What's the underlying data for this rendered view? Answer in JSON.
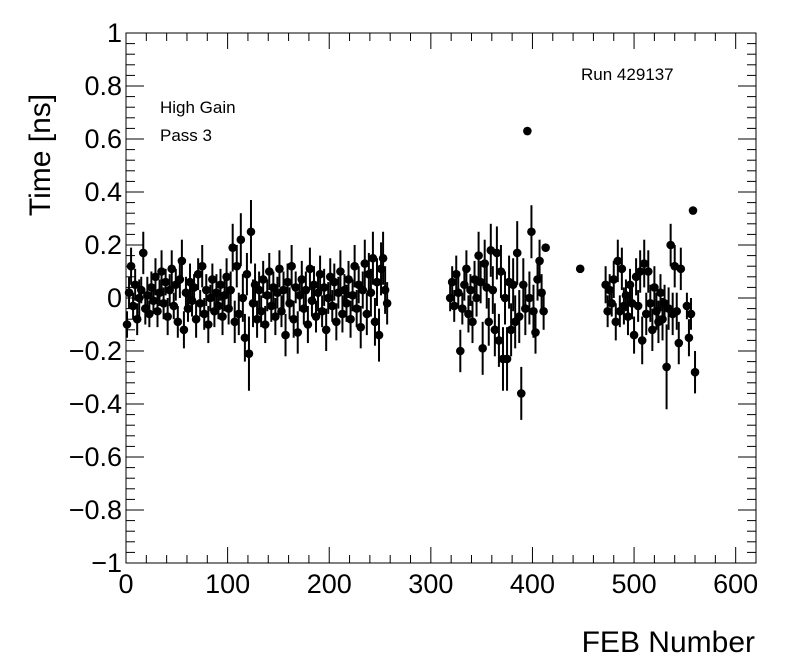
{
  "chart_data": {
    "type": "scatter",
    "title": "",
    "xlabel": "FEB Number",
    "ylabel": "Time [ns]",
    "xlim": [
      0,
      620
    ],
    "ylim": [
      -1,
      1
    ],
    "x_ticks": [
      0,
      100,
      200,
      300,
      400,
      500,
      600
    ],
    "x_tick_labels": [
      "0",
      "100",
      "200",
      "300",
      "400",
      "500",
      "600"
    ],
    "y_ticks": [
      -1,
      -0.8,
      -0.6,
      -0.4,
      -0.2,
      0,
      0.2,
      0.4,
      0.6,
      0.8,
      1
    ],
    "y_tick_labels": [
      "−1",
      "−0.8",
      "−0.6",
      "−0.4",
      "−0.2",
      "0",
      "0.2",
      "0.4",
      "0.6",
      "0.8",
      "1"
    ],
    "grid": false,
    "annotations": {
      "run": "Run 429137",
      "gain": "High Gain",
      "pass": "Pass 3"
    },
    "marker_color": "#000000",
    "points": [
      [
        1,
        -0.1,
        0.05
      ],
      [
        3,
        0.02,
        0.06
      ],
      [
        5,
        0.12,
        0.07
      ],
      [
        7,
        -0.03,
        0.05
      ],
      [
        9,
        0.05,
        0.06
      ],
      [
        11,
        -0.08,
        0.06
      ],
      [
        13,
        0.0,
        0.07
      ],
      [
        15,
        0.03,
        0.05
      ],
      [
        17,
        0.17,
        0.08
      ],
      [
        19,
        -0.04,
        0.06
      ],
      [
        21,
        0.01,
        0.07
      ],
      [
        23,
        -0.06,
        0.05
      ],
      [
        25,
        0.04,
        0.06
      ],
      [
        27,
        -0.01,
        0.05
      ],
      [
        29,
        0.08,
        0.07
      ],
      [
        31,
        -0.05,
        0.06
      ],
      [
        33,
        0.02,
        0.05
      ],
      [
        35,
        0.1,
        0.08
      ],
      [
        37,
        -0.02,
        0.06
      ],
      [
        39,
        0.06,
        0.05
      ],
      [
        41,
        -0.07,
        0.07
      ],
      [
        43,
        0.03,
        0.06
      ],
      [
        45,
        0.11,
        0.07
      ],
      [
        47,
        -0.03,
        0.05
      ],
      [
        49,
        0.05,
        0.06
      ],
      [
        51,
        -0.09,
        0.06
      ],
      [
        53,
        0.07,
        0.07
      ],
      [
        55,
        0.14,
        0.08
      ],
      [
        57,
        -0.12,
        0.07
      ],
      [
        59,
        0.02,
        0.06
      ],
      [
        61,
        -0.04,
        0.05
      ],
      [
        63,
        0.06,
        0.07
      ],
      [
        65,
        -0.01,
        0.06
      ],
      [
        67,
        0.04,
        0.05
      ],
      [
        69,
        -0.08,
        0.07
      ],
      [
        71,
        0.09,
        0.06
      ],
      [
        73,
        -0.02,
        0.05
      ],
      [
        75,
        0.12,
        0.08
      ],
      [
        77,
        -0.06,
        0.06
      ],
      [
        79,
        0.03,
        0.06
      ],
      [
        81,
        -0.1,
        0.07
      ],
      [
        83,
        0.0,
        0.05
      ],
      [
        85,
        0.07,
        0.06
      ],
      [
        87,
        -0.05,
        0.06
      ],
      [
        89,
        0.02,
        0.07
      ],
      [
        91,
        -0.03,
        0.05
      ],
      [
        93,
        0.05,
        0.06
      ],
      [
        95,
        -0.07,
        0.07
      ],
      [
        97,
        0.01,
        0.06
      ],
      [
        99,
        0.08,
        0.07
      ],
      [
        101,
        -0.04,
        0.06
      ],
      [
        103,
        0.03,
        0.07
      ],
      [
        105,
        0.19,
        0.09
      ],
      [
        107,
        -0.09,
        0.08
      ],
      [
        109,
        0.12,
        0.08
      ],
      [
        111,
        -0.06,
        0.08
      ],
      [
        113,
        0.22,
        0.1
      ],
      [
        115,
        0.0,
        0.09
      ],
      [
        117,
        -0.15,
        0.09
      ],
      [
        119,
        0.09,
        0.08
      ],
      [
        121,
        -0.21,
        0.14
      ],
      [
        123,
        0.25,
        0.12
      ],
      [
        125,
        -0.02,
        0.09
      ],
      [
        127,
        0.05,
        0.08
      ],
      [
        129,
        -0.08,
        0.07
      ],
      [
        131,
        0.03,
        0.07
      ],
      [
        133,
        -0.05,
        0.06
      ],
      [
        135,
        0.07,
        0.07
      ],
      [
        137,
        -0.1,
        0.07
      ],
      [
        139,
        0.01,
        0.06
      ],
      [
        141,
        0.1,
        0.07
      ],
      [
        143,
        -0.03,
        0.06
      ],
      [
        145,
        0.04,
        0.06
      ],
      [
        147,
        -0.07,
        0.07
      ],
      [
        149,
        0.02,
        0.06
      ],
      [
        151,
        0.11,
        0.07
      ],
      [
        153,
        -0.05,
        0.06
      ],
      [
        155,
        0.03,
        0.07
      ],
      [
        157,
        -0.14,
        0.08
      ],
      [
        159,
        0.06,
        0.07
      ],
      [
        161,
        -0.02,
        0.06
      ],
      [
        163,
        0.12,
        0.08
      ],
      [
        165,
        -0.08,
        0.07
      ],
      [
        167,
        0.04,
        0.06
      ],
      [
        169,
        -0.13,
        0.08
      ],
      [
        171,
        0.01,
        0.06
      ],
      [
        173,
        0.07,
        0.07
      ],
      [
        175,
        -0.04,
        0.06
      ],
      [
        177,
        0.03,
        0.07
      ],
      [
        179,
        -0.1,
        0.07
      ],
      [
        181,
        0.11,
        0.08
      ],
      [
        183,
        -0.01,
        0.06
      ],
      [
        185,
        0.05,
        0.07
      ],
      [
        187,
        -0.07,
        0.06
      ],
      [
        189,
        0.02,
        0.07
      ],
      [
        191,
        0.09,
        0.07
      ],
      [
        193,
        -0.05,
        0.06
      ],
      [
        195,
        0.04,
        0.07
      ],
      [
        197,
        -0.12,
        0.08
      ],
      [
        199,
        0.0,
        0.06
      ],
      [
        201,
        0.08,
        0.07
      ],
      [
        203,
        -0.03,
        0.06
      ],
      [
        205,
        0.06,
        0.07
      ],
      [
        207,
        -0.09,
        0.07
      ],
      [
        209,
        0.02,
        0.06
      ],
      [
        211,
        0.1,
        0.08
      ],
      [
        213,
        -0.06,
        0.07
      ],
      [
        215,
        0.03,
        0.06
      ],
      [
        217,
        -0.02,
        0.07
      ],
      [
        219,
        0.07,
        0.07
      ],
      [
        221,
        -0.08,
        0.07
      ],
      [
        223,
        0.01,
        0.06
      ],
      [
        225,
        0.12,
        0.08
      ],
      [
        227,
        -0.04,
        0.07
      ],
      [
        229,
        0.05,
        0.07
      ],
      [
        231,
        -0.11,
        0.08
      ],
      [
        233,
        0.03,
        0.07
      ],
      [
        235,
        0.13,
        0.09
      ],
      [
        237,
        -0.06,
        0.08
      ],
      [
        239,
        0.09,
        0.08
      ],
      [
        241,
        0.02,
        0.09
      ],
      [
        243,
        0.15,
        0.1
      ],
      [
        245,
        -0.09,
        0.09
      ],
      [
        247,
        0.06,
        0.09
      ],
      [
        249,
        -0.14,
        0.1
      ],
      [
        251,
        0.11,
        0.1
      ],
      [
        253,
        0.15,
        0.1
      ],
      [
        255,
        0.03,
        0.09
      ],
      [
        257,
        -0.02,
        0.08
      ],
      [
        319,
        0.0,
        0.05
      ],
      [
        321,
        0.06,
        0.06
      ],
      [
        323,
        -0.03,
        0.06
      ],
      [
        325,
        0.09,
        0.07
      ],
      [
        327,
        0.02,
        0.06
      ],
      [
        329,
        -0.2,
        0.08
      ],
      [
        331,
        -0.04,
        0.06
      ],
      [
        333,
        0.05,
        0.06
      ],
      [
        335,
        0.11,
        0.07
      ],
      [
        337,
        -0.06,
        0.07
      ],
      [
        339,
        0.03,
        0.06
      ],
      [
        341,
        -0.09,
        0.08
      ],
      [
        343,
        0.07,
        0.07
      ],
      [
        345,
        0.0,
        0.07
      ],
      [
        347,
        0.16,
        0.09
      ],
      [
        349,
        0.06,
        0.08
      ],
      [
        351,
        -0.19,
        0.1
      ],
      [
        353,
        0.13,
        0.09
      ],
      [
        355,
        0.04,
        0.08
      ],
      [
        357,
        -0.09,
        0.09
      ],
      [
        359,
        0.18,
        0.1
      ],
      [
        361,
        0.03,
        0.09
      ],
      [
        363,
        -0.12,
        0.1
      ],
      [
        365,
        0.17,
        0.1
      ],
      [
        367,
        -0.16,
        0.1
      ],
      [
        369,
        0.1,
        0.1
      ],
      [
        371,
        -0.23,
        0.12
      ],
      [
        373,
        0.0,
        0.1
      ],
      [
        375,
        -0.23,
        0.12
      ],
      [
        377,
        0.06,
        0.1
      ],
      [
        379,
        -0.12,
        0.1
      ],
      [
        381,
        0.05,
        0.1
      ],
      [
        383,
        -0.09,
        0.1
      ],
      [
        385,
        0.17,
        0.12
      ],
      [
        387,
        -0.07,
        0.1
      ],
      [
        389,
        -0.36,
        0.1
      ],
      [
        391,
        0.05,
        0.1
      ],
      [
        393,
        -0.04,
        0.1
      ],
      [
        395,
        0.63,
        0.0
      ],
      [
        397,
        0.0,
        0.1
      ],
      [
        399,
        0.25,
        0.1
      ],
      [
        401,
        -0.05,
        0.1
      ],
      [
        403,
        -0.13,
        0.08
      ],
      [
        405,
        0.07,
        0.08
      ],
      [
        407,
        0.14,
        0.08
      ],
      [
        409,
        0.02,
        0.07
      ],
      [
        411,
        -0.05,
        0.07
      ],
      [
        413,
        0.19,
        0.0
      ],
      [
        447,
        0.11,
        0.0
      ],
      [
        472,
        0.05,
        0.07
      ],
      [
        474,
        -0.05,
        0.06
      ],
      [
        476,
        0.03,
        0.06
      ],
      [
        478,
        -0.02,
        0.05
      ],
      [
        480,
        0.07,
        0.07
      ],
      [
        482,
        -0.09,
        0.07
      ],
      [
        484,
        0.14,
        0.08
      ],
      [
        486,
        -0.05,
        0.06
      ],
      [
        488,
        0.11,
        0.08
      ],
      [
        490,
        -0.03,
        0.07
      ],
      [
        492,
        0.01,
        0.06
      ],
      [
        494,
        -0.07,
        0.07
      ],
      [
        496,
        0.05,
        0.06
      ],
      [
        498,
        -0.02,
        0.06
      ],
      [
        500,
        -0.14,
        0.07
      ],
      [
        502,
        0.08,
        0.07
      ],
      [
        504,
        -0.03,
        0.06
      ],
      [
        506,
        0.1,
        0.08
      ],
      [
        508,
        -0.16,
        0.09
      ],
      [
        510,
        0.13,
        0.09
      ],
      [
        512,
        -0.06,
        0.08
      ],
      [
        514,
        0.1,
        0.08
      ],
      [
        516,
        -0.02,
        0.07
      ],
      [
        518,
        -0.12,
        0.08
      ],
      [
        520,
        0.04,
        0.08
      ],
      [
        522,
        -0.05,
        0.07
      ],
      [
        524,
        -0.09,
        0.08
      ],
      [
        526,
        0.02,
        0.07
      ],
      [
        528,
        -0.08,
        0.08
      ],
      [
        530,
        -0.02,
        0.07
      ],
      [
        532,
        -0.26,
        0.16
      ],
      [
        534,
        -0.04,
        0.08
      ],
      [
        536,
        0.2,
        0.08
      ],
      [
        538,
        -0.06,
        0.08
      ],
      [
        540,
        0.12,
        0.08
      ],
      [
        542,
        -0.05,
        0.07
      ],
      [
        544,
        -0.17,
        0.08
      ],
      [
        546,
        0.11,
        0.08
      ],
      [
        552,
        -0.03,
        0.05
      ],
      [
        554,
        -0.15,
        0.07
      ],
      [
        556,
        -0.06,
        0.06
      ],
      [
        558,
        0.33,
        0.0
      ],
      [
        560,
        -0.28,
        0.08
      ]
    ]
  }
}
